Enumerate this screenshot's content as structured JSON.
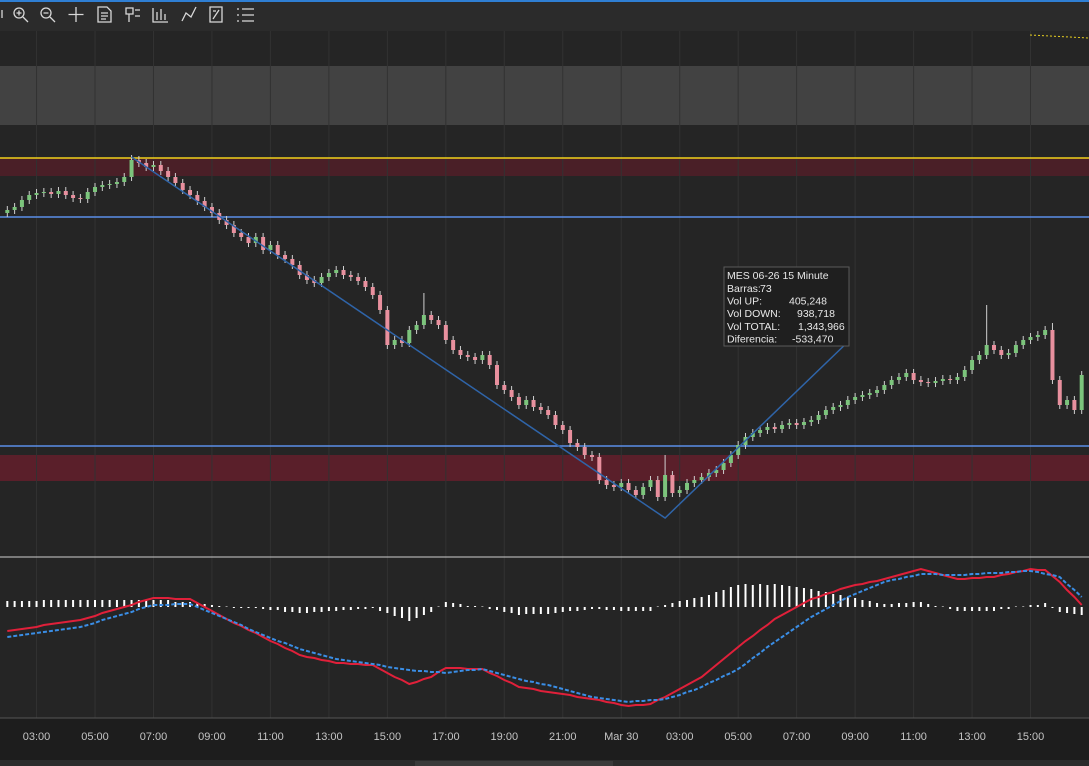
{
  "chart_data": [
    {
      "type": "candlestick",
      "open": [
        342,
        345,
        348,
        355,
        360,
        362,
        363,
        361,
        364,
        360,
        357,
        356,
        363,
        368,
        370,
        371,
        373,
        378,
        395,
        392,
        388,
        390,
        384,
        378,
        372,
        365,
        360,
        354,
        348,
        342,
        335,
        330,
        322,
        318,
        312,
        318,
        305,
        310,
        300,
        296,
        290,
        280,
        275,
        272,
        278,
        282,
        285,
        280,
        278,
        274,
        268,
        260,
        245,
        210,
        215,
        212,
        225,
        230,
        240,
        235,
        230,
        215,
        205,
        200,
        198,
        195,
        200,
        190,
        170,
        165,
        158,
        150,
        155,
        148,
        145,
        140,
        130,
        125,
        112,
        108,
        100,
        98,
        75,
        70,
        68,
        72,
        65,
        60,
        68,
        75,
        58,
        80,
        62,
        65,
        72,
        75,
        78,
        82,
        85,
        92,
        100,
        110,
        118,
        122,
        125,
        128,
        126,
        130,
        132,
        130,
        133,
        135,
        140,
        145,
        148,
        150,
        155,
        158,
        160,
        162,
        165,
        170,
        175,
        178,
        182,
        175,
        173,
        172,
        174,
        176,
        175,
        178,
        185,
        195,
        200,
        210,
        205,
        200,
        202,
        210,
        215,
        218,
        220,
        225,
        175,
        150,
        155,
        145
      ],
      "high": [
        349,
        352,
        359,
        364,
        366,
        367,
        367,
        368,
        368,
        364,
        361,
        367,
        372,
        374,
        375,
        377,
        382,
        400,
        399,
        396,
        394,
        394,
        388,
        382,
        376,
        369,
        364,
        358,
        352,
        346,
        339,
        334,
        326,
        322,
        322,
        322,
        314,
        314,
        304,
        300,
        294,
        284,
        279,
        282,
        286,
        289,
        289,
        284,
        282,
        278,
        272,
        264,
        249,
        219,
        219,
        229,
        234,
        262,
        244,
        239,
        234,
        219,
        209,
        204,
        202,
        204,
        204,
        194,
        174,
        169,
        162,
        159,
        159,
        152,
        149,
        144,
        134,
        129,
        116,
        112,
        104,
        102,
        79,
        74,
        76,
        76,
        69,
        72,
        79,
        79,
        100,
        84,
        69,
        76,
        79,
        82,
        86,
        89,
        96,
        104,
        114,
        122,
        126,
        129,
        132,
        132,
        134,
        136,
        136,
        137,
        139,
        144,
        149,
        152,
        154,
        159,
        162,
        164,
        166,
        169,
        174,
        179,
        182,
        186,
        186,
        179,
        177,
        178,
        180,
        180,
        182,
        189,
        199,
        204,
        250,
        214,
        209,
        206,
        214,
        219,
        222,
        224,
        229,
        232,
        179,
        159,
        159,
        184
      ],
      "low": [
        338,
        341,
        344,
        351,
        356,
        358,
        357,
        357,
        356,
        353,
        352,
        352,
        359,
        364,
        366,
        367,
        369,
        374,
        388,
        384,
        384,
        380,
        374,
        368,
        361,
        356,
        350,
        344,
        338,
        331,
        326,
        318,
        314,
        308,
        308,
        301,
        301,
        296,
        292,
        286,
        276,
        271,
        268,
        268,
        274,
        278,
        276,
        274,
        270,
        264,
        256,
        241,
        206,
        206,
        208,
        208,
        221,
        226,
        231,
        226,
        211,
        201,
        196,
        194,
        191,
        191,
        186,
        166,
        161,
        154,
        146,
        146,
        144,
        141,
        136,
        126,
        121,
        108,
        104,
        96,
        94,
        71,
        66,
        64,
        64,
        61,
        56,
        56,
        64,
        54,
        54,
        58,
        58,
        61,
        68,
        71,
        74,
        78,
        81,
        88,
        96,
        106,
        114,
        118,
        121,
        122,
        122,
        126,
        126,
        126,
        129,
        131,
        136,
        141,
        144,
        146,
        151,
        154,
        156,
        158,
        161,
        166,
        171,
        174,
        171,
        169,
        168,
        168,
        170,
        171,
        171,
        174,
        181,
        191,
        196,
        201,
        196,
        196,
        198,
        206,
        211,
        214,
        216,
        171,
        146,
        146,
        141,
        141
      ],
      "close": [
        345,
        348,
        355,
        360,
        362,
        363,
        361,
        364,
        360,
        357,
        356,
        363,
        368,
        370,
        371,
        373,
        378,
        395,
        392,
        388,
        390,
        384,
        378,
        372,
        365,
        360,
        354,
        348,
        342,
        335,
        330,
        322,
        318,
        312,
        318,
        305,
        310,
        300,
        296,
        290,
        280,
        275,
        272,
        278,
        282,
        285,
        280,
        278,
        274,
        268,
        260,
        245,
        210,
        215,
        212,
        225,
        230,
        240,
        235,
        230,
        215,
        205,
        200,
        198,
        195,
        200,
        190,
        170,
        165,
        158,
        150,
        155,
        148,
        145,
        140,
        130,
        125,
        112,
        108,
        100,
        98,
        75,
        70,
        68,
        72,
        65,
        60,
        68,
        75,
        58,
        80,
        62,
        65,
        72,
        75,
        78,
        82,
        85,
        92,
        100,
        110,
        118,
        122,
        125,
        128,
        126,
        130,
        132,
        130,
        133,
        135,
        140,
        145,
        148,
        150,
        155,
        158,
        160,
        162,
        165,
        170,
        175,
        178,
        182,
        175,
        173,
        172,
        174,
        176,
        175,
        178,
        185,
        195,
        200,
        210,
        205,
        200,
        202,
        210,
        215,
        218,
        220,
        225,
        175,
        150,
        155,
        145,
        180
      ],
      "up_color": "#7cc47c",
      "down_color": "#e8909e",
      "xlim": [
        -1,
        148
      ],
      "xticks": [
        {
          "value": 4,
          "label": "03:00"
        },
        {
          "value": 12,
          "label": "05:00"
        },
        {
          "value": 20,
          "label": "07:00"
        },
        {
          "value": 28,
          "label": "09:00"
        },
        {
          "value": 36,
          "label": "11:00"
        },
        {
          "value": 44,
          "label": "13:00"
        },
        {
          "value": 52,
          "label": "15:00"
        },
        {
          "value": 60,
          "label": "17:00"
        },
        {
          "value": 68,
          "label": "19:00"
        },
        {
          "value": 76,
          "label": "21:00"
        },
        {
          "value": 84,
          "label": "Mar 30"
        },
        {
          "value": 92,
          "label": "03:00"
        },
        {
          "value": 100,
          "label": "05:00"
        },
        {
          "value": 108,
          "label": "07:00"
        },
        {
          "value": 116,
          "label": "09:00"
        },
        {
          "value": 124,
          "label": "11:00"
        },
        {
          "value": 132,
          "label": "13:00"
        },
        {
          "value": 140,
          "label": "15:00"
        }
      ],
      "ylim": [
        0,
        520
      ],
      "zones": [
        {
          "from": 430,
          "to": 489,
          "color": "#424242"
        },
        {
          "from": 379,
          "to": 397,
          "color": "#4a1f27"
        },
        {
          "from": 74,
          "to": 100,
          "color": "#5a1f2a"
        }
      ],
      "levels": [
        {
          "value": 397,
          "color": "#f2d21b"
        },
        {
          "value": 338,
          "color": "#5b8ee8"
        },
        {
          "value": 109,
          "color": "#5b8ee8"
        }
      ],
      "zigzag": {
        "color": "#2f64a8",
        "x_index": [
          17,
          90,
          115
        ],
        "values": [
          398,
          37,
          213
        ]
      },
      "tooltip": {
        "title": "MES 06-26 15 Minute",
        "rows": [
          [
            "Barras:",
            "73"
          ],
          [
            "Vol UP:",
            "405,248"
          ],
          [
            "Vol DOWN:",
            "938,718"
          ],
          [
            "Vol TOTAL:",
            "1,343,966"
          ],
          [
            "Diferencia:",
            "-533,470"
          ]
        ]
      }
    },
    {
      "type": "macd",
      "ylim": [
        -111,
        47
      ],
      "histogram": {
        "color": "#ffffff",
        "values": [
          6,
          6,
          6,
          6,
          6,
          7,
          7,
          7,
          7,
          7,
          7,
          7,
          7,
          7,
          7,
          7,
          7,
          7,
          7,
          7,
          7,
          7,
          7,
          5,
          5,
          5,
          4,
          3,
          2,
          1,
          0,
          -1,
          -1,
          -1,
          -1,
          -2,
          -3,
          -3,
          -5,
          -5,
          -6,
          -6,
          -5,
          -5,
          -4,
          -4,
          -3,
          -3,
          -2,
          -2,
          -1,
          -4,
          -6,
          -9,
          -11,
          -14,
          -11,
          -8,
          -5,
          0,
          5,
          4,
          3,
          1,
          1,
          0,
          -2,
          -3,
          -5,
          -6,
          -8,
          -7,
          -7,
          -7,
          -7,
          -6,
          -5,
          -4,
          -4,
          -3,
          -2,
          -2,
          -3,
          -3,
          -4,
          -4,
          -4,
          -4,
          -4,
          0,
          2,
          4,
          6,
          7,
          9,
          10,
          12,
          15,
          17,
          20,
          22,
          23,
          22,
          23,
          22,
          23,
          22,
          21,
          20,
          19,
          18,
          16,
          15,
          13,
          12,
          10,
          9,
          7,
          6,
          4,
          3,
          3,
          4,
          4,
          5,
          5,
          3,
          1,
          0,
          -2,
          -4,
          -4,
          -4,
          -4,
          -4,
          -4,
          -2,
          -2,
          0,
          0,
          2,
          2,
          4,
          -1,
          -5,
          -6,
          -7,
          -8
        ]
      },
      "series": [
        {
          "color": "#e0203a",
          "values": [
            -24,
            -23,
            -22,
            -21,
            -20,
            -18,
            -17,
            -16,
            -15,
            -14,
            -13,
            -11,
            -9,
            -6,
            -4,
            -2,
            0,
            2,
            5,
            7,
            9,
            9,
            9,
            8,
            8,
            8,
            4,
            0,
            -4,
            -8,
            -12,
            -16,
            -19,
            -23,
            -26,
            -30,
            -34,
            -37,
            -41,
            -44,
            -48,
            -50,
            -51,
            -53,
            -54,
            -56,
            -56,
            -57,
            -57,
            -58,
            -58,
            -62,
            -66,
            -70,
            -73,
            -77,
            -75,
            -72,
            -70,
            -65,
            -61,
            -61,
            -61,
            -62,
            -62,
            -62,
            -66,
            -69,
            -73,
            -76,
            -80,
            -81,
            -82,
            -84,
            -85,
            -86,
            -87,
            -88,
            -90,
            -91,
            -92,
            -93,
            -95,
            -96,
            -98,
            -99,
            -98,
            -98,
            -97,
            -93,
            -90,
            -86,
            -82,
            -78,
            -74,
            -70,
            -64,
            -58,
            -52,
            -46,
            -40,
            -34,
            -29,
            -23,
            -18,
            -12,
            -8,
            -4,
            0,
            4,
            8,
            10,
            13,
            15,
            18,
            20,
            22,
            23,
            25,
            26,
            28,
            30,
            32,
            34,
            36,
            38,
            36,
            34,
            32,
            30,
            28,
            28,
            29,
            29,
            30,
            30,
            32,
            33,
            35,
            36,
            38,
            37,
            37,
            31,
            25,
            17,
            10,
            2
          ]
        },
        {
          "color": "#3a8ee6",
          "dashed": true,
          "values": [
            -30,
            -29,
            -28,
            -27,
            -26,
            -25,
            -24,
            -23,
            -22,
            -21,
            -20,
            -18,
            -16,
            -13,
            -11,
            -9,
            -7,
            -5,
            -2,
            0,
            2,
            2,
            2,
            3,
            3,
            3,
            0,
            -3,
            -6,
            -9,
            -12,
            -15,
            -18,
            -22,
            -25,
            -28,
            -31,
            -34,
            -36,
            -39,
            -42,
            -44,
            -46,
            -48,
            -50,
            -52,
            -53,
            -54,
            -55,
            -56,
            -57,
            -58,
            -60,
            -61,
            -62,
            -63,
            -64,
            -64,
            -65,
            -65,
            -66,
            -65,
            -64,
            -63,
            -63,
            -62,
            -64,
            -66,
            -68,
            -70,
            -72,
            -74,
            -75,
            -77,
            -78,
            -80,
            -82,
            -84,
            -86,
            -88,
            -90,
            -91,
            -92,
            -93,
            -94,
            -95,
            -94,
            -94,
            -93,
            -93,
            -92,
            -90,
            -88,
            -85,
            -83,
            -80,
            -76,
            -73,
            -69,
            -66,
            -62,
            -57,
            -51,
            -46,
            -40,
            -35,
            -30,
            -25,
            -20,
            -15,
            -10,
            -6,
            -2,
            2,
            6,
            10,
            13,
            16,
            19,
            22,
            25,
            27,
            28,
            30,
            31,
            33,
            33,
            33,
            32,
            32,
            32,
            32,
            33,
            33,
            34,
            34,
            34,
            35,
            35,
            36,
            36,
            35,
            33,
            32,
            30,
            23,
            17,
            10
          ]
        }
      ]
    }
  ]
}
